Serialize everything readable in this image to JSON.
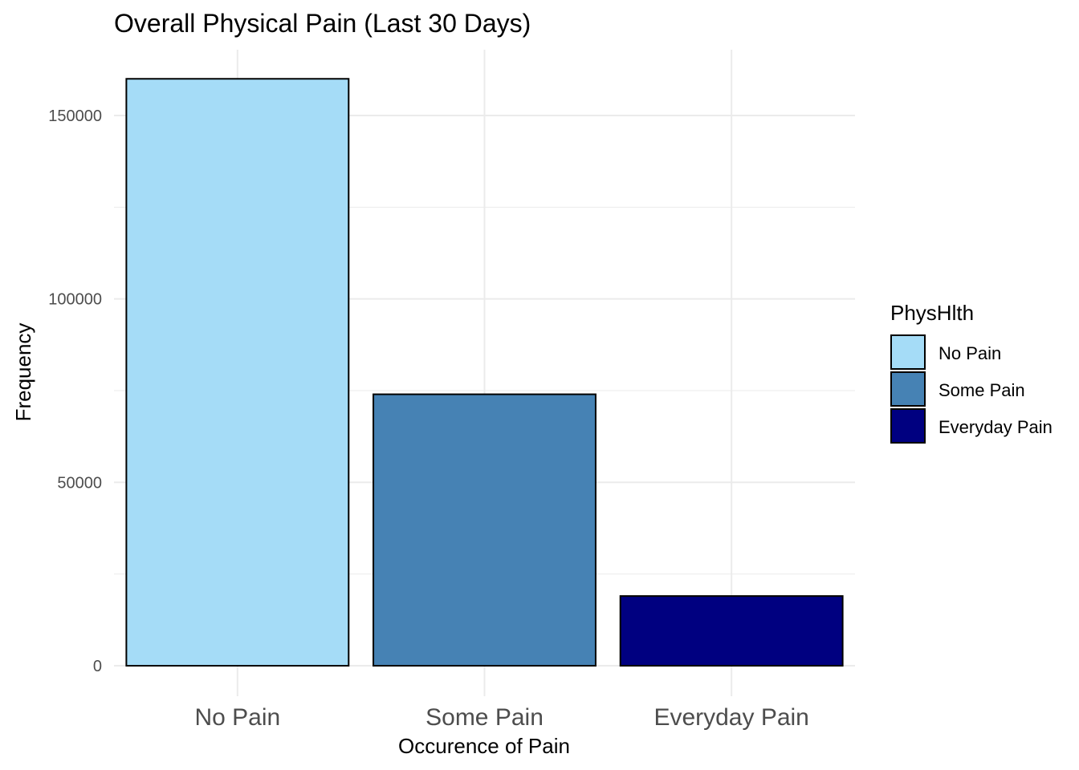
{
  "chart_data": {
    "type": "bar",
    "title": "Overall Physical Pain (Last 30 Days)",
    "xlabel": "Occurence of Pain",
    "ylabel": "Frequency",
    "categories": [
      "No Pain",
      "Some Pain",
      "Everyday Pain"
    ],
    "values": [
      160000,
      74000,
      19000
    ],
    "colors": [
      "#a5dcf7",
      "#4682b4",
      "#000080"
    ],
    "bar_outline_color": "#000000",
    "ylim": [
      0,
      168000
    ],
    "yticks": [
      0,
      50000,
      100000,
      150000
    ],
    "yticks_minor": [
      25000,
      75000,
      125000
    ],
    "grid": true,
    "legend": {
      "title": "PhysHlth",
      "position": "right",
      "entries": [
        "No Pain",
        "Some Pain",
        "Everyday Pain"
      ]
    }
  }
}
